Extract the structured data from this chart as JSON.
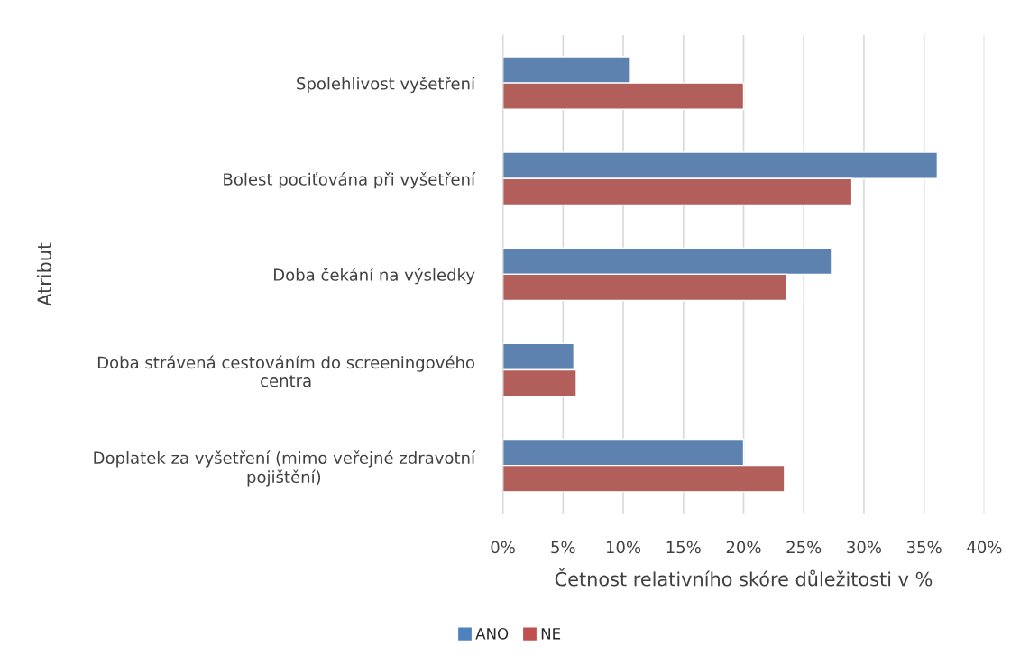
{
  "chart_data": {
    "type": "bar",
    "orientation": "horizontal",
    "xlabel": "Četnost relativního skóre důležitosti v %",
    "ylabel": "Atribut",
    "categories": [
      "Spolehlivost vyšetření",
      "Bolest pociťována při vyšetření",
      "Doba čekání na výsledky",
      "Doba strávená cestováním do screeningového\ncentra",
      "Doplatek za vyšetření (mimo veřejné zdravotní\npojištění)"
    ],
    "series": [
      {
        "name": "ANO",
        "color": "#4f81bd",
        "values": [
          10.6,
          36.1,
          27.3,
          5.9,
          20.0
        ]
      },
      {
        "name": "NE",
        "color": "#c0504d",
        "values": [
          20.0,
          29.0,
          23.6,
          6.1,
          23.4
        ]
      }
    ],
    "xlim": [
      0,
      40
    ],
    "xticks": [
      {
        "value": 0,
        "label": "0%"
      },
      {
        "value": 5,
        "label": "5%"
      },
      {
        "value": 10,
        "label": "10%"
      },
      {
        "value": 15,
        "label": "15%"
      },
      {
        "value": 20,
        "label": "20%"
      },
      {
        "value": 25,
        "label": "25%"
      },
      {
        "value": 30,
        "label": "30%"
      },
      {
        "value": 35,
        "label": "35%"
      },
      {
        "value": 40,
        "label": "40%"
      }
    ],
    "grid": "x",
    "legend": "bottom"
  }
}
